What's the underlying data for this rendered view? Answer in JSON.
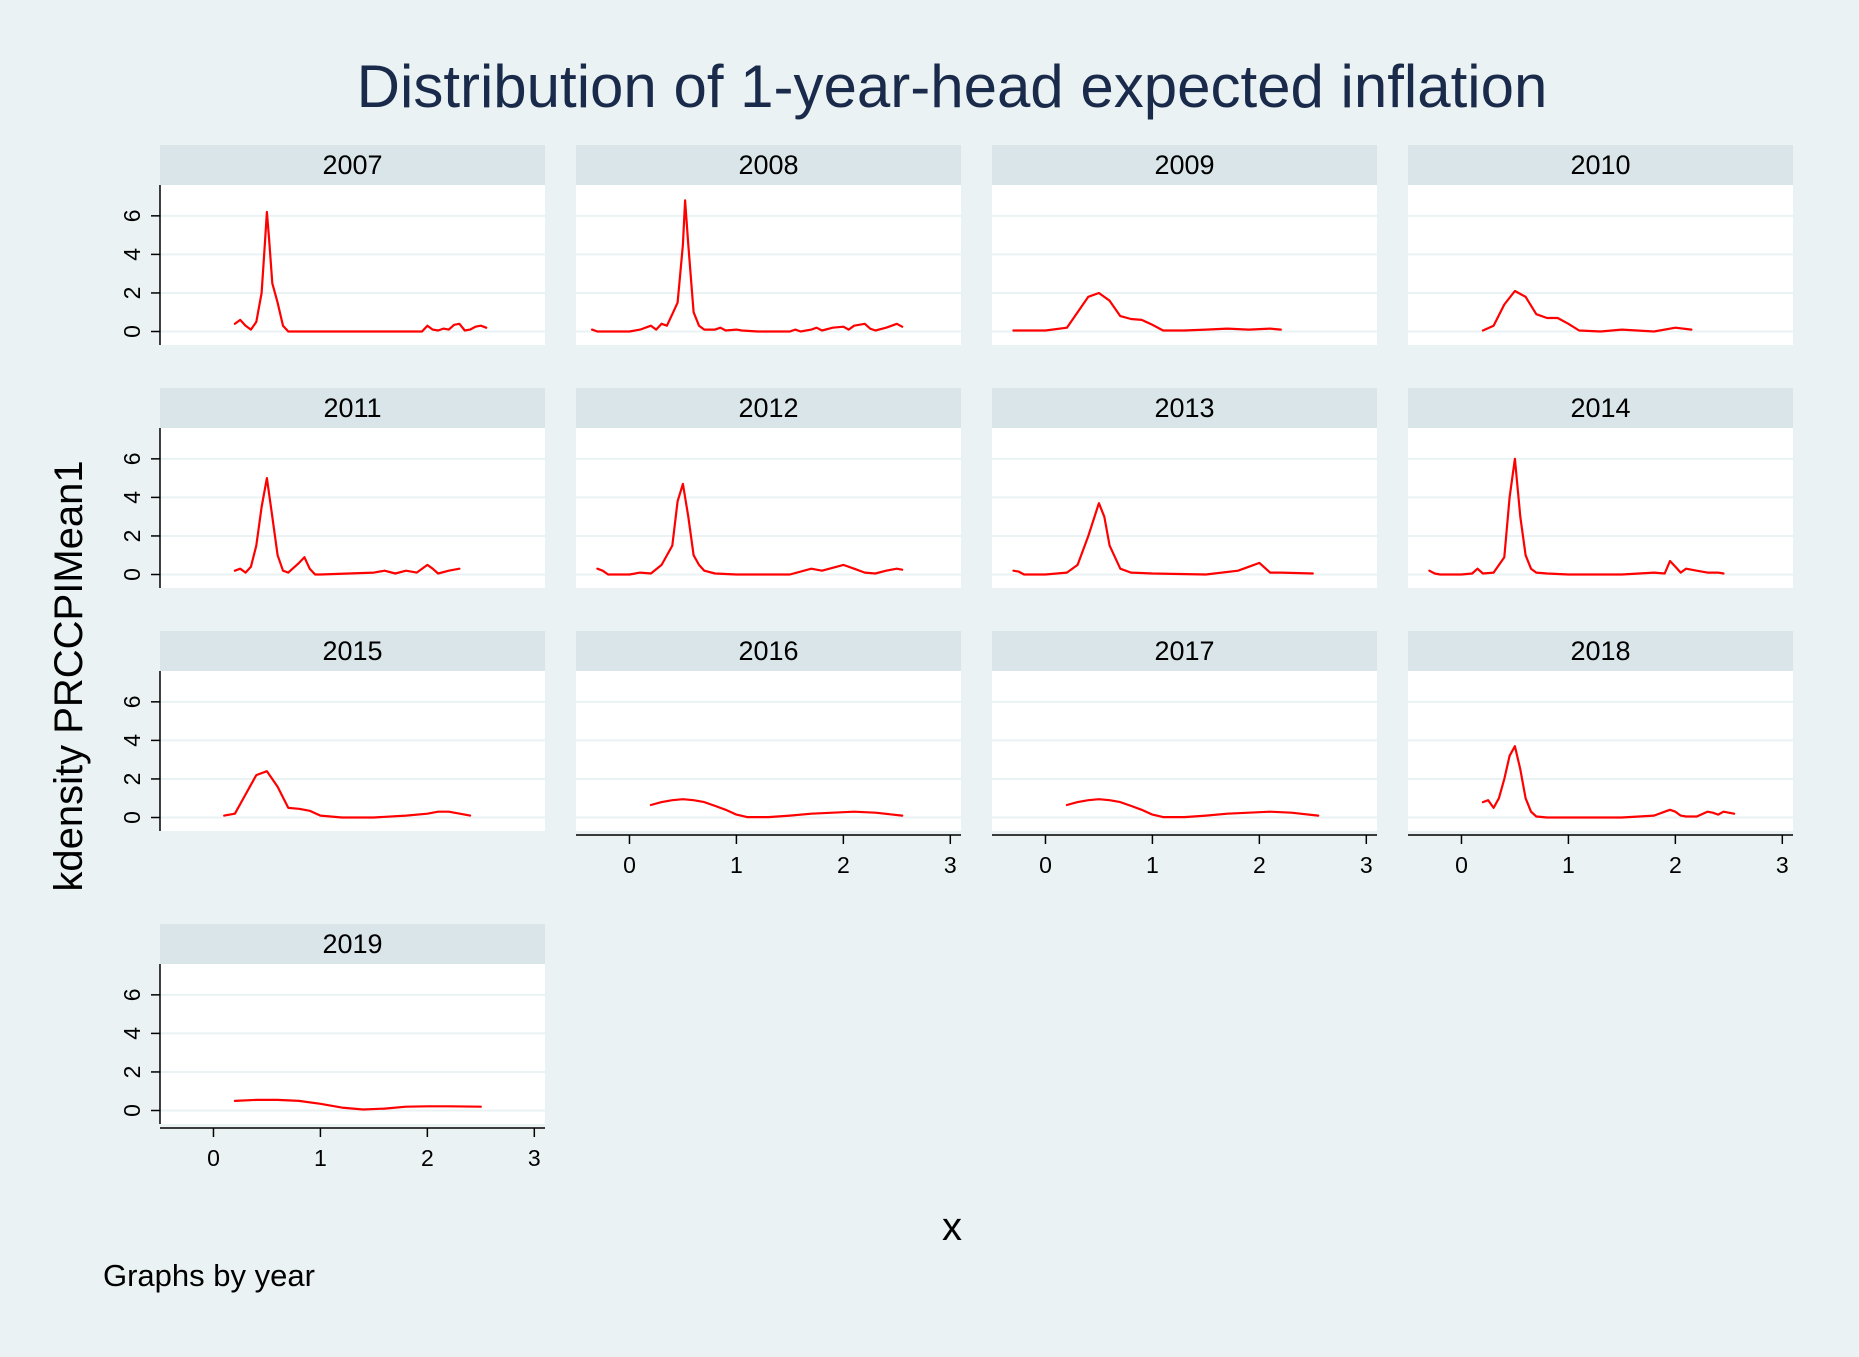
{
  "chart_data": {
    "type": "line",
    "title": "Distribution of 1-year-head expected inflation",
    "xlabel": "x",
    "ylabel": "kdensity PRCCPIMean1",
    "note": "Graphs by year",
    "xlim": [
      -0.5,
      3.1
    ],
    "ylim": [
      -0.7,
      7.6
    ],
    "x_ticks": [
      0,
      1,
      2,
      3
    ],
    "y_ticks": [
      0,
      2,
      4,
      6
    ],
    "grid": true,
    "series_color": "#ff0000",
    "panel_background": "#ffffff",
    "page_background": "#eaf2f3",
    "strip_color": "#d9e5e9",
    "panels": [
      {
        "label": "2007",
        "x": [
          0.2,
          0.25,
          0.3,
          0.35,
          0.4,
          0.45,
          0.48,
          0.5,
          0.52,
          0.55,
          0.6,
          0.65,
          0.7,
          1.0,
          1.5,
          1.95,
          2.0,
          2.05,
          2.1,
          2.15,
          2.2,
          2.25,
          2.3,
          2.35,
          2.4,
          2.45,
          2.5,
          2.55
        ],
        "y": [
          0.4,
          0.6,
          0.3,
          0.1,
          0.5,
          2.0,
          4.5,
          6.2,
          4.8,
          2.5,
          1.5,
          0.3,
          0,
          0,
          0,
          0,
          0.3,
          0.1,
          0.05,
          0.15,
          0.1,
          0.35,
          0.4,
          0.05,
          0.1,
          0.25,
          0.3,
          0.2
        ]
      },
      {
        "label": "2008",
        "x": [
          -0.35,
          -0.3,
          -0.2,
          0.0,
          0.1,
          0.2,
          0.25,
          0.3,
          0.35,
          0.4,
          0.45,
          0.5,
          0.52,
          0.55,
          0.6,
          0.65,
          0.7,
          0.8,
          0.85,
          0.9,
          1.0,
          1.05,
          1.2,
          1.5,
          1.55,
          1.6,
          1.7,
          1.75,
          1.8,
          1.9,
          2.0,
          2.05,
          2.1,
          2.2,
          2.25,
          2.3,
          2.4,
          2.5,
          2.55
        ],
        "y": [
          0.1,
          0,
          0,
          0,
          0.1,
          0.3,
          0.1,
          0.4,
          0.3,
          0.9,
          1.5,
          4.5,
          6.8,
          4.5,
          1.0,
          0.3,
          0.1,
          0.1,
          0.2,
          0.05,
          0.1,
          0.05,
          0,
          0,
          0.1,
          0,
          0.1,
          0.2,
          0.05,
          0.2,
          0.25,
          0.1,
          0.3,
          0.4,
          0.15,
          0.05,
          0.2,
          0.4,
          0.25
        ]
      },
      {
        "label": "2009",
        "x": [
          -0.3,
          0.0,
          0.2,
          0.3,
          0.4,
          0.5,
          0.6,
          0.7,
          0.8,
          0.9,
          1.0,
          1.1,
          1.3,
          1.5,
          1.7,
          1.9,
          2.1,
          2.2
        ],
        "y": [
          0.05,
          0.05,
          0.2,
          1.0,
          1.8,
          2.0,
          1.6,
          0.8,
          0.65,
          0.6,
          0.35,
          0.05,
          0.05,
          0.1,
          0.15,
          0.1,
          0.15,
          0.1
        ]
      },
      {
        "label": "2010",
        "x": [
          0.2,
          0.3,
          0.4,
          0.5,
          0.6,
          0.7,
          0.8,
          0.9,
          1.0,
          1.1,
          1.3,
          1.5,
          1.8,
          2.0,
          2.15
        ],
        "y": [
          0.05,
          0.3,
          1.4,
          2.1,
          1.8,
          0.9,
          0.7,
          0.7,
          0.4,
          0.05,
          0,
          0.1,
          0,
          0.2,
          0.1
        ]
      },
      {
        "label": "2011",
        "x": [
          0.2,
          0.25,
          0.3,
          0.35,
          0.4,
          0.45,
          0.5,
          0.55,
          0.6,
          0.65,
          0.7,
          0.8,
          0.85,
          0.9,
          0.95,
          1.0,
          1.5,
          1.6,
          1.7,
          1.8,
          1.9,
          2.0,
          2.05,
          2.1,
          2.2,
          2.3
        ],
        "y": [
          0.2,
          0.3,
          0.1,
          0.4,
          1.5,
          3.5,
          5.0,
          3.0,
          1.0,
          0.2,
          0.1,
          0.6,
          0.9,
          0.3,
          0,
          0,
          0.1,
          0.2,
          0.05,
          0.2,
          0.1,
          0.5,
          0.3,
          0.05,
          0.2,
          0.3
        ]
      },
      {
        "label": "2012",
        "x": [
          -0.3,
          -0.25,
          -0.2,
          0.0,
          0.1,
          0.2,
          0.3,
          0.4,
          0.45,
          0.5,
          0.55,
          0.6,
          0.65,
          0.7,
          0.8,
          1.0,
          1.5,
          1.7,
          1.8,
          1.9,
          2.0,
          2.1,
          2.2,
          2.3,
          2.4,
          2.5,
          2.55
        ],
        "y": [
          0.3,
          0.2,
          0,
          0,
          0.1,
          0.05,
          0.5,
          1.5,
          3.8,
          4.7,
          3.0,
          1.0,
          0.5,
          0.2,
          0.05,
          0,
          0,
          0.3,
          0.2,
          0.35,
          0.5,
          0.3,
          0.1,
          0.05,
          0.2,
          0.3,
          0.25
        ]
      },
      {
        "label": "2013",
        "x": [
          -0.3,
          -0.25,
          -0.2,
          0.0,
          0.2,
          0.3,
          0.4,
          0.5,
          0.55,
          0.6,
          0.7,
          0.8,
          1.0,
          1.5,
          1.8,
          1.9,
          2.0,
          2.1,
          2.2,
          2.5
        ],
        "y": [
          0.2,
          0.15,
          0,
          0,
          0.1,
          0.5,
          2.0,
          3.7,
          3.0,
          1.5,
          0.3,
          0.1,
          0.05,
          0,
          0.2,
          0.4,
          0.6,
          0.1,
          0.1,
          0.05
        ]
      },
      {
        "label": "2014",
        "x": [
          -0.3,
          -0.25,
          -0.2,
          0.0,
          0.1,
          0.15,
          0.2,
          0.3,
          0.4,
          0.45,
          0.5,
          0.55,
          0.6,
          0.65,
          0.7,
          0.8,
          1.0,
          1.5,
          1.8,
          1.9,
          1.95,
          2.0,
          2.05,
          2.1,
          2.2,
          2.3,
          2.4,
          2.45
        ],
        "y": [
          0.2,
          0.05,
          0,
          0,
          0.05,
          0.3,
          0.05,
          0.1,
          0.9,
          4.0,
          6.0,
          3.0,
          1.0,
          0.3,
          0.1,
          0.05,
          0,
          0,
          0.1,
          0.05,
          0.7,
          0.4,
          0.1,
          0.3,
          0.2,
          0.1,
          0.1,
          0.05
        ]
      },
      {
        "label": "2015",
        "x": [
          0.1,
          0.2,
          0.3,
          0.4,
          0.5,
          0.6,
          0.7,
          0.8,
          0.9,
          1.0,
          1.2,
          1.5,
          1.8,
          2.0,
          2.1,
          2.2,
          2.4
        ],
        "y": [
          0.1,
          0.2,
          1.2,
          2.2,
          2.4,
          1.6,
          0.5,
          0.45,
          0.35,
          0.1,
          0,
          0,
          0.1,
          0.2,
          0.3,
          0.3,
          0.1
        ]
      },
      {
        "label": "2016",
        "x": [
          0.2,
          0.3,
          0.4,
          0.5,
          0.6,
          0.7,
          0.8,
          0.9,
          1.0,
          1.1,
          1.3,
          1.5,
          1.7,
          1.9,
          2.1,
          2.3,
          2.55
        ],
        "y": [
          0.65,
          0.8,
          0.9,
          0.95,
          0.9,
          0.8,
          0.6,
          0.4,
          0.15,
          0.02,
          0.02,
          0.1,
          0.2,
          0.25,
          0.3,
          0.25,
          0.1
        ]
      },
      {
        "label": "2017",
        "x": [
          0.2,
          0.3,
          0.4,
          0.5,
          0.6,
          0.7,
          0.8,
          0.9,
          1.0,
          1.1,
          1.3,
          1.5,
          1.7,
          1.9,
          2.1,
          2.3,
          2.55
        ],
        "y": [
          0.65,
          0.8,
          0.9,
          0.95,
          0.9,
          0.8,
          0.6,
          0.4,
          0.15,
          0.02,
          0.02,
          0.1,
          0.2,
          0.25,
          0.3,
          0.25,
          0.1
        ]
      },
      {
        "label": "2018",
        "x": [
          0.2,
          0.25,
          0.3,
          0.35,
          0.4,
          0.45,
          0.5,
          0.55,
          0.6,
          0.65,
          0.7,
          0.8,
          1.0,
          1.5,
          1.8,
          1.9,
          1.95,
          2.0,
          2.05,
          2.1,
          2.2,
          2.3,
          2.35,
          2.4,
          2.45,
          2.5,
          2.55
        ],
        "y": [
          0.8,
          0.9,
          0.5,
          1.0,
          2.0,
          3.2,
          3.7,
          2.5,
          1.0,
          0.3,
          0.05,
          0,
          0,
          0,
          0.1,
          0.3,
          0.4,
          0.3,
          0.1,
          0.05,
          0.05,
          0.3,
          0.25,
          0.15,
          0.3,
          0.25,
          0.2
        ]
      },
      {
        "label": "2019",
        "x": [
          0.2,
          0.4,
          0.6,
          0.8,
          1.0,
          1.2,
          1.4,
          1.6,
          1.8,
          2.0,
          2.2,
          2.5
        ],
        "y": [
          0.5,
          0.55,
          0.55,
          0.5,
          0.35,
          0.15,
          0.05,
          0.1,
          0.2,
          0.22,
          0.22,
          0.2
        ]
      }
    ]
  }
}
